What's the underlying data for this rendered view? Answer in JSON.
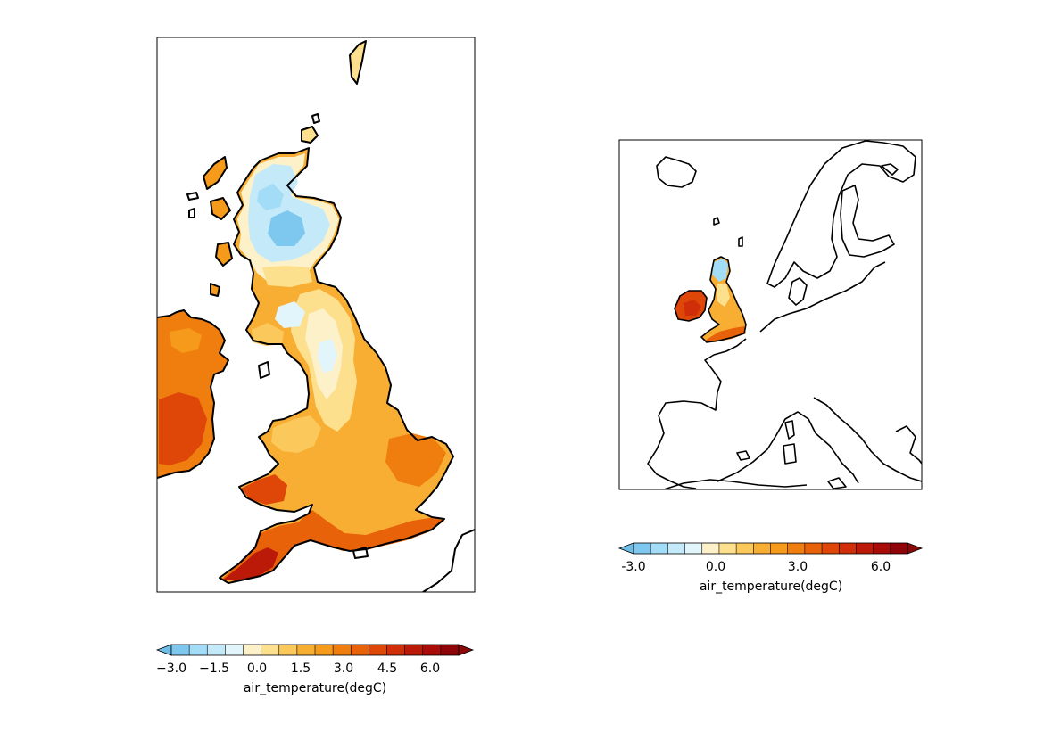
{
  "colors": {
    "land_outline": "#000000",
    "frame": "#000000",
    "levels": [
      "#7ec8f0",
      "#a3dcf6",
      "#c4eaf9",
      "#e2f5fb",
      "#fdf1c9",
      "#fde08e",
      "#fbc85c",
      "#f8ae33",
      "#f59a1a",
      "#ef7e0e",
      "#e8620a",
      "#de4708",
      "#cf2e08",
      "#bc1a08",
      "#a80b08",
      "#8f0408"
    ],
    "extend_low": "#6fbde6",
    "extend_high": "#8a0a0a"
  },
  "left_panel": {
    "colorbar": {
      "tick_labels": [
        "−3.0",
        "−1.5",
        "0.0",
        "1.5",
        "3.0",
        "4.5",
        "6.0"
      ],
      "label": "air_temperature(degC)"
    }
  },
  "right_panel": {
    "colorbar": {
      "tick_labels": [
        "-3.0",
        "0.0",
        "3.0",
        "6.0"
      ],
      "label": "air_temperature(degC)"
    }
  }
}
